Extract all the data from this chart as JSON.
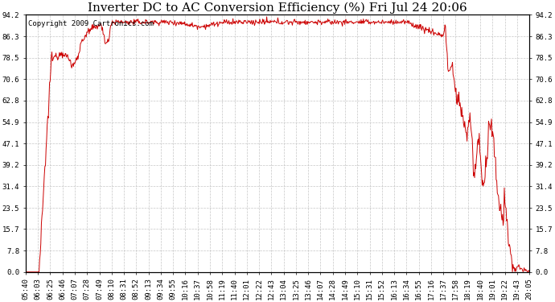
{
  "title": "Inverter DC to AC Conversion Efficiency (%) Fri Jul 24 20:06",
  "copyright_text": "Copyright 2009 Cartronics.com",
  "line_color": "#cc0000",
  "background_color": "#ffffff",
  "plot_bg_color": "#ffffff",
  "grid_color": "#c0c0c0",
  "yticks": [
    0.0,
    7.8,
    15.7,
    23.5,
    31.4,
    39.2,
    47.1,
    54.9,
    62.8,
    70.6,
    78.5,
    86.3,
    94.2
  ],
  "ymin": 0.0,
  "ymax": 94.2,
  "xtick_labels": [
    "05:40",
    "06:03",
    "06:25",
    "06:46",
    "07:07",
    "07:28",
    "07:49",
    "08:10",
    "08:31",
    "08:52",
    "09:13",
    "09:34",
    "09:55",
    "10:16",
    "10:37",
    "10:58",
    "11:19",
    "11:40",
    "12:01",
    "12:22",
    "12:43",
    "13:04",
    "13:25",
    "13:46",
    "14:07",
    "14:28",
    "14:49",
    "15:10",
    "15:31",
    "15:52",
    "16:13",
    "16:34",
    "16:55",
    "17:16",
    "17:37",
    "17:58",
    "18:19",
    "18:40",
    "19:01",
    "19:22",
    "19:43",
    "20:05"
  ],
  "title_fontsize": 11,
  "tick_fontsize": 6.5,
  "copyright_fontsize": 6.5
}
